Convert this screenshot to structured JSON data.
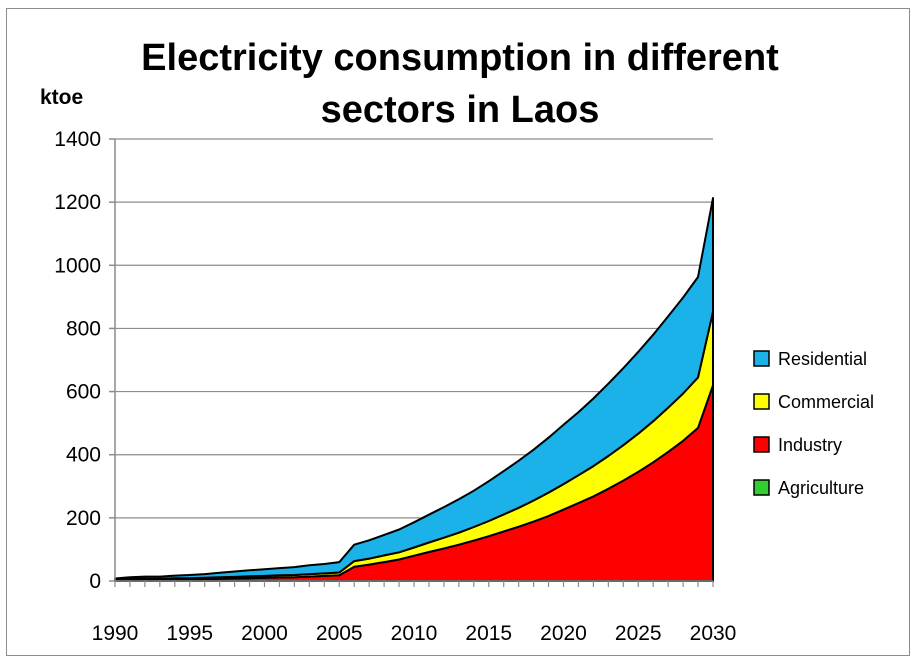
{
  "chart_data": {
    "type": "area",
    "stacked": true,
    "title": "Electricity consumption in different sectors in Laos",
    "ylabel": "ktoe",
    "xlabel": "",
    "xlim": [
      1990,
      2030
    ],
    "ylim": [
      0,
      1400
    ],
    "x_ticks": [
      1990,
      1995,
      2000,
      2005,
      2010,
      2015,
      2020,
      2025,
      2030
    ],
    "y_ticks": [
      0,
      200,
      400,
      600,
      800,
      1000,
      1200,
      1400
    ],
    "grid": "horizontal",
    "legend_position": "right",
    "x": [
      1990,
      1991,
      1992,
      1993,
      1994,
      1995,
      1996,
      1997,
      1998,
      1999,
      2000,
      2001,
      2002,
      2003,
      2004,
      2005,
      2006,
      2007,
      2008,
      2009,
      2010,
      2011,
      2012,
      2013,
      2014,
      2015,
      2016,
      2017,
      2018,
      2019,
      2020,
      2021,
      2022,
      2023,
      2024,
      2025,
      2026,
      2027,
      2028,
      2029,
      2030
    ],
    "series": [
      {
        "name": "Agriculture",
        "color": "#33cc33",
        "values": [
          0,
          0,
          0,
          0,
          0,
          0,
          0,
          0,
          0,
          0,
          0,
          0,
          0,
          0,
          0,
          0,
          0,
          0,
          0,
          0,
          0,
          0,
          0,
          0,
          0,
          0,
          0,
          0,
          0,
          0,
          0,
          0,
          0,
          0,
          0,
          0,
          0,
          0,
          0,
          0,
          0
        ]
      },
      {
        "name": "Industry",
        "color": "#ff0000",
        "values": [
          2,
          3,
          4,
          4,
          5,
          5,
          6,
          7,
          8,
          9,
          10,
          11,
          12,
          14,
          16,
          18,
          45,
          52,
          60,
          68,
          80,
          92,
          103,
          115,
          128,
          142,
          157,
          172,
          188,
          206,
          226,
          247,
          268,
          292,
          318,
          346,
          376,
          409,
          444,
          485,
          620
        ]
      },
      {
        "name": "Commercial",
        "color": "#ffff00",
        "values": [
          2,
          3,
          3,
          3,
          4,
          4,
          4,
          5,
          5,
          6,
          6,
          7,
          7,
          8,
          8,
          9,
          18,
          19,
          21,
          23,
          26,
          30,
          34,
          38,
          43,
          48,
          54,
          60,
          67,
          74,
          81,
          88,
          96,
          104,
          112,
          121,
          130,
          140,
          150,
          160,
          233
        ]
      },
      {
        "name": "Residential",
        "color": "#1ab2e8",
        "values": [
          4,
          6,
          7,
          7,
          8,
          10,
          12,
          14,
          17,
          19,
          21,
          23,
          25,
          28,
          30,
          33,
          52,
          58,
          65,
          72,
          80,
          88,
          97,
          106,
          115,
          126,
          137,
          149,
          161,
          174,
          188,
          200,
          214,
          229,
          244,
          259,
          274,
          289,
          304,
          318,
          360
        ]
      }
    ]
  }
}
